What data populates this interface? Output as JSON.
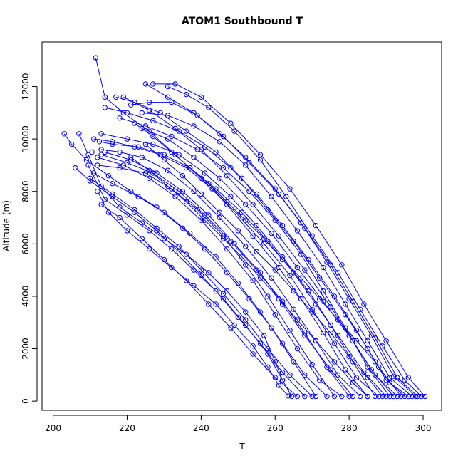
{
  "chart_data": {
    "type": "scatter",
    "mode": "lines+markers",
    "title": "ATOM1 Southbound T",
    "xlabel": "T",
    "ylabel": "Altitude (m)",
    "xlim": [
      197,
      305
    ],
    "ylim": [
      -350,
      13700
    ],
    "xticks": [
      200,
      220,
      240,
      260,
      280,
      300
    ],
    "yticks": [
      0,
      2000,
      4000,
      6000,
      8000,
      10000,
      12000
    ],
    "color": "#0000ff",
    "marker": "open-circle",
    "series": [
      {
        "x": [
          300.5,
          296,
          290,
          284,
          278,
          271,
          264,
          256,
          248,
          240,
          233,
          227
        ],
        "y": [
          180,
          900,
          2300,
          3700,
          5200,
          6700,
          8100,
          9400,
          10600,
          11600,
          12100,
          12100
        ]
      },
      {
        "x": [
          299.5,
          295,
          289,
          283,
          277,
          270,
          263,
          256,
          249,
          242,
          236,
          231
        ],
        "y": [
          180,
          800,
          2100,
          3500,
          4900,
          6300,
          7800,
          9200,
          10300,
          11200,
          11700,
          12000
        ]
      },
      {
        "x": [
          298.5,
          293,
          287,
          281,
          275,
          268,
          261,
          253,
          246,
          239,
          232,
          226,
          221
        ],
        "y": [
          180,
          900,
          2400,
          3800,
          5200,
          6600,
          7900,
          9100,
          10100,
          10900,
          11400,
          11400,
          11300
        ]
      },
      {
        "x": [
          298,
          292,
          286,
          280,
          274,
          267,
          260,
          252,
          245,
          238,
          231,
          225
        ],
        "y": [
          180,
          950,
          2500,
          3900,
          5300,
          6800,
          8100,
          9300,
          10200,
          11000,
          11600,
          12100
        ]
      },
      {
        "x": [
          297,
          291,
          285,
          279,
          273,
          266,
          259,
          252,
          245,
          238,
          231,
          224
        ],
        "y": [
          180,
          900,
          2300,
          3700,
          5100,
          6500,
          7800,
          9000,
          9900,
          10500,
          10900,
          11000
        ]
      },
      {
        "x": [
          296,
          290,
          285,
          279,
          272,
          265,
          258,
          251,
          244,
          236,
          229,
          222,
          217
        ],
        "y": [
          180,
          800,
          2000,
          3300,
          4700,
          6100,
          7300,
          8500,
          9500,
          10300,
          11000,
          11400,
          11600
        ]
      },
      {
        "x": [
          294,
          288,
          282,
          276,
          269,
          262,
          255,
          248,
          241,
          234,
          227,
          220,
          214
        ],
        "y": [
          180,
          1300,
          2700,
          4000,
          5400,
          6700,
          7900,
          8900,
          9700,
          10300,
          10700,
          11000,
          11200
        ]
      },
      {
        "x": [
          293,
          287,
          281,
          275,
          268,
          261,
          254,
          247,
          240,
          233,
          226,
          219
        ],
        "y": [
          180,
          1000,
          2300,
          3600,
          5000,
          6300,
          7500,
          8600,
          9600,
          10400,
          11100,
          11600
        ]
      },
      {
        "x": [
          292,
          286,
          280,
          273,
          266,
          259,
          252,
          245,
          238,
          231,
          224
        ],
        "y": [
          180,
          1200,
          2500,
          3800,
          5100,
          6400,
          7500,
          8500,
          9300,
          10000,
          10400
        ]
      },
      {
        "x": [
          291,
          285,
          279,
          273,
          267,
          260,
          253,
          246,
          239,
          232,
          225,
          218
        ],
        "y": [
          180,
          1300,
          2800,
          4200,
          5600,
          6900,
          8000,
          8900,
          9600,
          10100,
          10500,
          10800
        ]
      },
      {
        "x": [
          290,
          284,
          277,
          271,
          265,
          258,
          251,
          244,
          237,
          230,
          223,
          216,
          212.5
        ],
        "y": [
          180,
          1100,
          2500,
          3700,
          4900,
          6100,
          7200,
          8100,
          8900,
          9400,
          9700,
          9800,
          9900
        ]
      },
      {
        "x": [
          288,
          282,
          276,
          270,
          264,
          257,
          250,
          243,
          236,
          229,
          222,
          216,
          211
        ],
        "y": [
          180,
          900,
          2200,
          3500,
          4800,
          6000,
          7100,
          8100,
          8900,
          9400,
          9700,
          9900,
          10000
        ]
      },
      {
        "x": [
          287,
          281,
          275,
          269,
          262,
          255,
          248,
          241,
          234,
          227,
          220,
          213
        ],
        "y": [
          180,
          1500,
          2900,
          4200,
          5500,
          6700,
          7800,
          8700,
          9400,
          9800,
          10000,
          10200
        ]
      },
      {
        "x": [
          285,
          279,
          273,
          267,
          261,
          254,
          247,
          240,
          233,
          226,
          219,
          214,
          211.5
        ],
        "y": [
          180,
          1200,
          2600,
          3900,
          5100,
          6300,
          7500,
          8500,
          9400,
          10300,
          11000,
          11600,
          13100
        ]
      },
      {
        "x": [
          283,
          277,
          271,
          265,
          259,
          252,
          245,
          238,
          231,
          224,
          218,
          213
        ],
        "y": [
          180,
          1000,
          2300,
          3500,
          4700,
          5900,
          7000,
          8000,
          8800,
          9300,
          9500,
          9600
        ]
      },
      {
        "x": [
          281,
          275,
          268,
          262,
          256,
          249,
          242,
          235,
          228,
          221,
          214,
          210.5
        ],
        "y": [
          180,
          1200,
          2500,
          3700,
          4900,
          6000,
          7100,
          8000,
          8700,
          9200,
          9500,
          9500
        ]
      },
      {
        "x": [
          280,
          274,
          268,
          262,
          255,
          248,
          241,
          234,
          227,
          220,
          213
        ],
        "y": [
          180,
          1300,
          2600,
          3800,
          5000,
          6100,
          7100,
          8000,
          8700,
          9100,
          9400
        ]
      },
      {
        "x": [
          278,
          272,
          266,
          260,
          254,
          247,
          240,
          233,
          226,
          219,
          212
        ],
        "y": [
          180,
          800,
          2000,
          3300,
          4600,
          5800,
          6900,
          7800,
          8500,
          9000,
          9300
        ]
      },
      {
        "x": [
          276,
          270,
          264,
          258,
          252,
          246,
          239,
          232,
          225,
          218,
          212
        ],
        "y": [
          180,
          1400,
          2700,
          4000,
          5200,
          6300,
          7300,
          8100,
          8700,
          8900,
          9000
        ]
      },
      {
        "x": [
          274,
          268,
          262,
          256,
          250,
          244,
          237,
          230,
          223,
          216,
          211
        ],
        "y": [
          180,
          1000,
          2200,
          3400,
          4500,
          5500,
          6400,
          7200,
          7800,
          8300,
          8700
        ]
      },
      {
        "x": [
          271,
          265,
          259,
          253,
          247,
          241,
          235,
          228,
          221,
          215,
          209,
          205,
          203
        ],
        "y": [
          180,
          1500,
          2800,
          3900,
          4900,
          5800,
          6600,
          7400,
          8000,
          8600,
          9200,
          9800,
          10200
        ]
      },
      {
        "x": [
          270,
          264,
          258,
          252,
          246,
          240,
          234,
          228,
          222,
          216,
          210
        ],
        "y": [
          180,
          1000,
          2000,
          3100,
          4100,
          5000,
          5900,
          6600,
          7300,
          7900,
          8500
        ]
      },
      {
        "x": [
          268,
          262,
          256,
          250,
          244,
          238,
          232,
          226,
          220,
          214,
          209.5
        ],
        "y": [
          180,
          1100,
          2200,
          3200,
          4200,
          5000,
          5800,
          6500,
          7100,
          7700,
          9000
        ]
      },
      {
        "x": [
          266,
          260,
          254,
          248,
          242,
          236,
          230,
          224,
          218,
          213
        ],
        "y": [
          180,
          900,
          1800,
          2800,
          3700,
          4600,
          5400,
          6200,
          7000,
          7500
        ]
      },
      {
        "x": [
          264.5,
          262,
          258,
          252,
          246,
          240,
          234,
          228,
          222,
          216,
          210,
          206
        ],
        "y": [
          180,
          800,
          1800,
          2900,
          3900,
          4800,
          5700,
          6500,
          7200,
          7800,
          8400,
          8900
        ]
      },
      {
        "x": [
          262,
          260,
          257,
          252,
          247,
          242,
          236,
          230,
          224,
          218,
          213,
          209.5,
          207
        ],
        "y": [
          800,
          1500,
          2500,
          3400,
          4200,
          4900,
          5600,
          6200,
          6800,
          7400,
          8200,
          9400,
          10200
        ]
      },
      {
        "x": [
          263.5,
          261,
          258,
          254,
          249,
          244,
          238,
          232,
          226,
          220,
          215,
          212
        ],
        "y": [
          200,
          600,
          1300,
          2100,
          2900,
          3700,
          4400,
          5100,
          5800,
          6500,
          7200,
          8000
        ]
      },
      {
        "x": [
          285,
          281,
          276,
          271,
          266,
          261,
          256,
          251,
          246,
          241,
          236,
          231,
          226,
          221
        ],
        "y": [
          180,
          700,
          1500,
          2300,
          3100,
          3900,
          4700,
          5500,
          6200,
          6900,
          7600,
          8200,
          8800,
          9300
        ]
      },
      {
        "x": [
          289,
          285,
          280,
          275,
          270,
          265,
          260,
          255,
          250,
          245,
          240,
          235,
          230,
          225
        ],
        "y": [
          180,
          900,
          1700,
          2600,
          3400,
          4200,
          5000,
          5700,
          6500,
          7200,
          7900,
          8600,
          9200,
          9800
        ]
      },
      {
        "x": [
          295,
          291,
          287,
          282,
          277,
          272,
          267,
          262,
          257,
          252,
          247,
          242,
          237,
          232,
          227,
          222
        ],
        "y": [
          180,
          700,
          1500,
          2300,
          3100,
          3900,
          4700,
          5400,
          6200,
          6900,
          7600,
          8300,
          8900,
          9500,
          10100,
          10600
        ]
      }
    ]
  }
}
